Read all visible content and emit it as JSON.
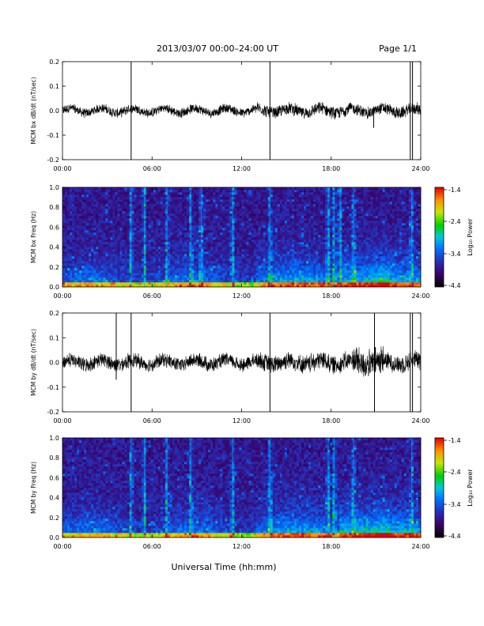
{
  "header": {
    "title": "2013/03/07  00:00–24:00 UT",
    "page": "Page 1/1"
  },
  "xaxis": {
    "label": "Universal Time (hh:mm)",
    "ticks": [
      "00:00",
      "06:00",
      "12:00",
      "18:00",
      "24:00"
    ]
  },
  "colorbar": {
    "label": "Log₁₀ Power",
    "ticks": [
      "-1.4",
      "-2.4",
      "-3.4",
      "-4.4"
    ]
  },
  "chart_data": [
    {
      "type": "line",
      "ylabel": "MCM bx dB/dt (nT/sec)",
      "xlim": [
        0,
        24
      ],
      "ylim": [
        -0.2,
        0.2
      ],
      "yticks": [
        "0.2",
        "0.1",
        "0.0",
        "-0.1",
        "-0.2"
      ],
      "noise_amplitude": 0.02,
      "spikes": [
        {
          "x": 4.6,
          "y": [
            -0.2,
            0.2
          ]
        },
        {
          "x": 13.9,
          "y": [
            -0.2,
            0.2
          ]
        },
        {
          "x": 20.85,
          "y": [
            -0.07,
            0.0
          ]
        },
        {
          "x": 23.3,
          "y": [
            -0.2,
            0.2
          ]
        },
        {
          "x": 23.45,
          "y": [
            -0.2,
            0.2
          ]
        }
      ]
    },
    {
      "type": "heatmap",
      "ylabel": "MCM bx Freq (Hz)",
      "xlim": [
        0,
        24
      ],
      "ylim": [
        0,
        1.0
      ],
      "yticks": [
        "1.0",
        "0.8",
        "0.6",
        "0.4",
        "0.2",
        "0.0"
      ],
      "colorbar_range": [
        -4.4,
        -1.4
      ],
      "vertical_bands": [
        4.6,
        5.5,
        7.0,
        8.6,
        9.3,
        11.4,
        13.9,
        17.8,
        18.2,
        18.6,
        19.5,
        23.4
      ]
    },
    {
      "type": "line",
      "ylabel": "MCM by dB/dt (nT/sec)",
      "xlim": [
        0,
        24
      ],
      "ylim": [
        -0.2,
        0.2
      ],
      "yticks": [
        "0.2",
        "0.1",
        "0.0",
        "-0.1",
        "-0.2"
      ],
      "noise_amplitude": 0.03,
      "spikes": [
        {
          "x": 3.6,
          "y": [
            -0.07,
            0.2
          ]
        },
        {
          "x": 4.6,
          "y": [
            -0.2,
            0.2
          ]
        },
        {
          "x": 13.9,
          "y": [
            -0.2,
            0.2
          ]
        },
        {
          "x": 20.9,
          "y": [
            -0.2,
            0.2
          ]
        },
        {
          "x": 23.3,
          "y": [
            -0.2,
            0.2
          ]
        },
        {
          "x": 23.45,
          "y": [
            -0.2,
            0.2
          ]
        }
      ]
    },
    {
      "type": "heatmap",
      "ylabel": "MCM by Freq (Hz)",
      "xlim": [
        0,
        24
      ],
      "ylim": [
        0,
        1.0
      ],
      "yticks": [
        "1.0",
        "0.8",
        "0.6",
        "0.4",
        "0.2",
        "0.0"
      ],
      "colorbar_range": [
        -4.4,
        -1.4
      ],
      "vertical_bands": [
        4.6,
        5.5,
        7.0,
        8.6,
        11.4,
        13.9,
        17.8,
        18.2,
        19.5,
        23.4
      ]
    }
  ]
}
